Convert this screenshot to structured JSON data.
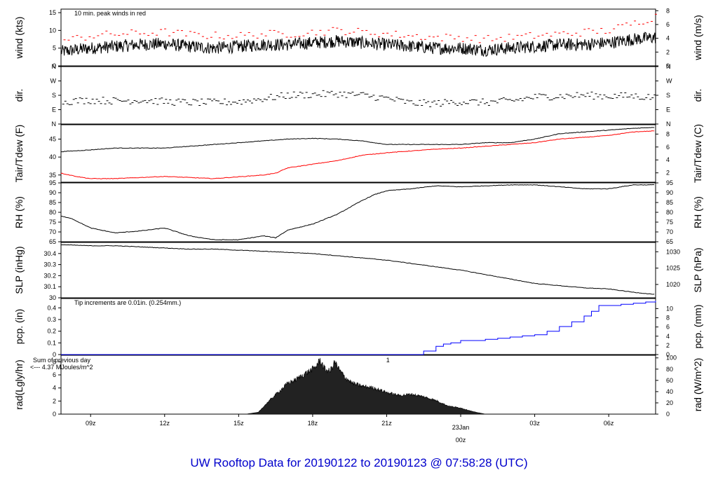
{
  "title": "UW Rooftop Data for 20190122  to  20190123 @ 07:58:28  (UTC)",
  "colors": {
    "black": "#000000",
    "red": "#ff0000",
    "blue": "#0000ff",
    "purple": "#aa00cc",
    "date": "#dd0000",
    "title": "#0000cc"
  },
  "time_axis": {
    "start_hour": 7.8,
    "end_hour": 31.9,
    "ticks": [
      {
        "hour": 9,
        "label": "09z"
      },
      {
        "hour": 12,
        "label": "12z"
      },
      {
        "hour": 15,
        "label": "15z"
      },
      {
        "hour": 18,
        "label": "18z"
      },
      {
        "hour": 21,
        "label": "21z"
      },
      {
        "hour": 24,
        "label": ""
      },
      {
        "hour": 27,
        "label": "03z"
      },
      {
        "hour": 30,
        "label": "06z"
      }
    ],
    "date_marker": {
      "hour": 24,
      "date": "23Jan",
      "time": "00z"
    }
  },
  "chart_data": [
    {
      "type": "line",
      "id": "wind",
      "left_label": "wind (kts)",
      "right_label": "wind (m/s)",
      "ylim": [
        0,
        16
      ],
      "left_ticks": [
        0,
        5,
        10,
        15
      ],
      "right_ticks": [
        0,
        2,
        4,
        6,
        8
      ],
      "right_factor": 0.514444,
      "note": "10 min. peak winds in red",
      "series": [
        {
          "name": "wind speed",
          "color": "#000000",
          "style": "noisy",
          "hours": [
            7.8,
            9,
            10,
            11,
            12,
            13,
            14,
            15,
            16,
            17,
            18,
            19,
            20,
            21,
            22,
            23,
            24,
            25,
            26,
            27,
            28,
            29,
            30,
            31,
            31.9
          ],
          "values": [
            4,
            5,
            5.5,
            6,
            6.2,
            5.5,
            5,
            5.5,
            6,
            6,
            6.5,
            7,
            6.5,
            6,
            5.5,
            5,
            5,
            4.5,
            5,
            5.5,
            6,
            6,
            6.5,
            7.5,
            8
          ]
        },
        {
          "name": "10 min peak",
          "color": "#ff0000",
          "style": "dashes",
          "hours": [
            7.8,
            9,
            10,
            11,
            12,
            13,
            14,
            15,
            16,
            17,
            18,
            19,
            20,
            21,
            22,
            23,
            24,
            25,
            26,
            27,
            28,
            29,
            30,
            31,
            31.9
          ],
          "values": [
            7,
            8.5,
            9,
            9.2,
            9.5,
            8.8,
            8.5,
            8.5,
            9,
            9,
            9.5,
            10,
            9.5,
            9,
            8.5,
            8,
            8,
            7.5,
            8,
            8.5,
            9,
            9.5,
            10,
            12,
            14
          ]
        }
      ]
    },
    {
      "type": "scatter",
      "id": "dir",
      "left_label": "dir.",
      "right_label": "dir.",
      "ylim": [
        0,
        360
      ],
      "left_ticks": [
        [
          0,
          "N"
        ],
        [
          90,
          "E"
        ],
        [
          180,
          "S"
        ],
        [
          270,
          "W"
        ],
        [
          360,
          "N"
        ]
      ],
      "series": [
        {
          "name": "wind direction",
          "color": "#000000",
          "hours": [
            7.8,
            9,
            10,
            11,
            12,
            13,
            14,
            15,
            16,
            17,
            18,
            19,
            20,
            21,
            22,
            23,
            24,
            25,
            26,
            27,
            28,
            29,
            30,
            31,
            31.9
          ],
          "values": [
            140,
            150,
            145,
            150,
            140,
            135,
            135,
            140,
            160,
            180,
            185,
            190,
            180,
            160,
            130,
            130,
            140,
            135,
            145,
            170,
            175,
            180,
            175,
            175,
            165
          ]
        }
      ]
    },
    {
      "type": "line",
      "id": "temp",
      "left_label": "Tair/Tdew (F)",
      "right_label": "Tair/Tdew (C)",
      "ylim": [
        33,
        49
      ],
      "left_ticks": [
        35,
        40,
        45
      ],
      "right_ticks": [
        2,
        4,
        6,
        8
      ],
      "right_convert": "f_to_c",
      "series": [
        {
          "name": "Tair",
          "color": "#000000",
          "hours": [
            7.8,
            9,
            10,
            11,
            12,
            13,
            14,
            15,
            16,
            17,
            18,
            19,
            20,
            21,
            22,
            23,
            24,
            25,
            26,
            27,
            28,
            29,
            30,
            31,
            31.9
          ],
          "values": [
            41.5,
            42,
            42.5,
            42.5,
            42.5,
            43,
            43.5,
            44,
            44.5,
            45,
            45.2,
            45,
            44.5,
            43.5,
            43.5,
            43.5,
            43.5,
            44,
            44,
            45,
            46.5,
            47,
            47.5,
            48,
            48.3
          ]
        },
        {
          "name": "Tdew",
          "color": "#ff0000",
          "hours": [
            7.8,
            8.5,
            9,
            10,
            11,
            12,
            13,
            14,
            15,
            16,
            16.5,
            17,
            18,
            19,
            20,
            21,
            22,
            23,
            24,
            25,
            26,
            27,
            28,
            29,
            30,
            31,
            31.9
          ],
          "values": [
            35.5,
            34.5,
            34,
            34,
            34.3,
            34.6,
            34.3,
            34,
            34.5,
            35,
            35.5,
            37,
            38,
            39,
            40.5,
            41.2,
            41.7,
            42.2,
            42.5,
            43,
            43.5,
            44,
            45,
            45.5,
            46,
            47,
            47.3
          ]
        }
      ]
    },
    {
      "type": "line",
      "id": "rh",
      "left_label": "RH (%)",
      "right_label": "RH (%)",
      "ylim": [
        65,
        95
      ],
      "left_ticks": [
        65,
        70,
        75,
        80,
        85,
        90,
        95
      ],
      "right_ticks": [
        65,
        70,
        75,
        80,
        85,
        90,
        95
      ],
      "series": [
        {
          "name": "RH",
          "color": "#000000",
          "hours": [
            7.8,
            8.2,
            9,
            10,
            11,
            12,
            13,
            14,
            15,
            16,
            16.5,
            17,
            18,
            19,
            20,
            20.5,
            21,
            22,
            23,
            24,
            25,
            26,
            27,
            28,
            29,
            30,
            31,
            31.9
          ],
          "values": [
            78,
            77,
            72,
            69.5,
            70.5,
            72,
            68,
            66,
            66,
            68,
            67,
            71,
            74,
            79,
            86,
            89,
            91,
            92,
            93.5,
            93,
            93.5,
            94,
            94,
            93,
            92,
            92,
            94,
            94
          ]
        }
      ]
    },
    {
      "type": "line",
      "id": "slp",
      "left_label": "SLP (inHg)",
      "right_label": "SLP (hPa)",
      "ylim": [
        30,
        30.5
      ],
      "left_ticks": [
        30.0,
        30.1,
        30.2,
        30.3,
        30.4
      ],
      "right_ticks": [
        1020,
        1025,
        1030
      ],
      "right_factor": 33.8639,
      "series": [
        {
          "name": "SLP",
          "color": "#000000",
          "hours": [
            7.8,
            9,
            10,
            11,
            12,
            13,
            14,
            15,
            16,
            17,
            18,
            19,
            20,
            21,
            22,
            23,
            24,
            25,
            26,
            27,
            28,
            29,
            30,
            31,
            31.9
          ],
          "values": [
            30.48,
            30.47,
            30.47,
            30.46,
            30.45,
            30.44,
            30.44,
            30.43,
            30.42,
            30.41,
            30.4,
            30.38,
            30.36,
            30.34,
            30.31,
            30.28,
            30.25,
            30.21,
            30.17,
            30.13,
            30.11,
            30.09,
            30.08,
            30.05,
            30.03
          ]
        }
      ]
    },
    {
      "type": "line",
      "id": "pcp",
      "left_label": "pcp. (in)",
      "right_label": "pcp. (mm)",
      "ylim": [
        0,
        0.48
      ],
      "left_ticks": [
        0.0,
        0.1,
        0.2,
        0.3,
        0.4
      ],
      "right_ticks": [
        0,
        2,
        4,
        6,
        8,
        10
      ],
      "right_factor": 25.4,
      "note": "Tip increments are 0.01in. (0.254mm.)",
      "series": [
        {
          "name": "precip",
          "color": "#0000ff",
          "step": true,
          "hours": [
            7.8,
            22.0,
            22.5,
            23.0,
            23.3,
            23.6,
            24.0,
            24.5,
            25.0,
            25.5,
            26.0,
            26.5,
            27.0,
            27.5,
            28.0,
            28.5,
            29.0,
            29.3,
            29.6,
            30.0,
            30.5,
            31.0,
            31.5,
            31.9
          ],
          "values": [
            0,
            0,
            0.03,
            0.07,
            0.09,
            0.1,
            0.12,
            0.12,
            0.13,
            0.14,
            0.15,
            0.16,
            0.17,
            0.2,
            0.24,
            0.28,
            0.33,
            0.37,
            0.42,
            0.42,
            0.43,
            0.44,
            0.45,
            0.46
          ]
        }
      ]
    },
    {
      "type": "area",
      "id": "rad",
      "left_label": "rad(Lgly/hr)",
      "right_label": "rad (W/m^2)",
      "ylim": [
        0,
        9
      ],
      "left_ticks": [
        0,
        2,
        4,
        6,
        8
      ],
      "right_ticks": [
        0,
        20,
        40,
        60,
        80,
        100
      ],
      "right_factor": 11.63,
      "note_lines": [
        "Sum of previous day",
        "<--- 4.37 MJoules/m^2"
      ],
      "marker_label": "1",
      "marker_hour": 21.05,
      "series": [
        {
          "name": "radiation",
          "color": "#000000",
          "hours": [
            15.3,
            15.8,
            16.2,
            16.6,
            17.0,
            17.3,
            17.6,
            17.9,
            18.1,
            18.3,
            18.5,
            18.7,
            18.9,
            19.1,
            19.3,
            19.6,
            20.0,
            20.5,
            21.0,
            21.5,
            22.0,
            22.5,
            23.0,
            23.5,
            24.0,
            24.5,
            25.0
          ],
          "values": [
            0,
            0.3,
            2,
            3.5,
            5,
            5.5,
            6.3,
            7,
            7.5,
            8.7,
            7.2,
            6.9,
            8.4,
            7.0,
            6.0,
            5.0,
            4.5,
            4.2,
            3.5,
            3.0,
            3.2,
            2.8,
            2.2,
            1.3,
            1.0,
            0.4,
            0
          ]
        }
      ]
    }
  ]
}
